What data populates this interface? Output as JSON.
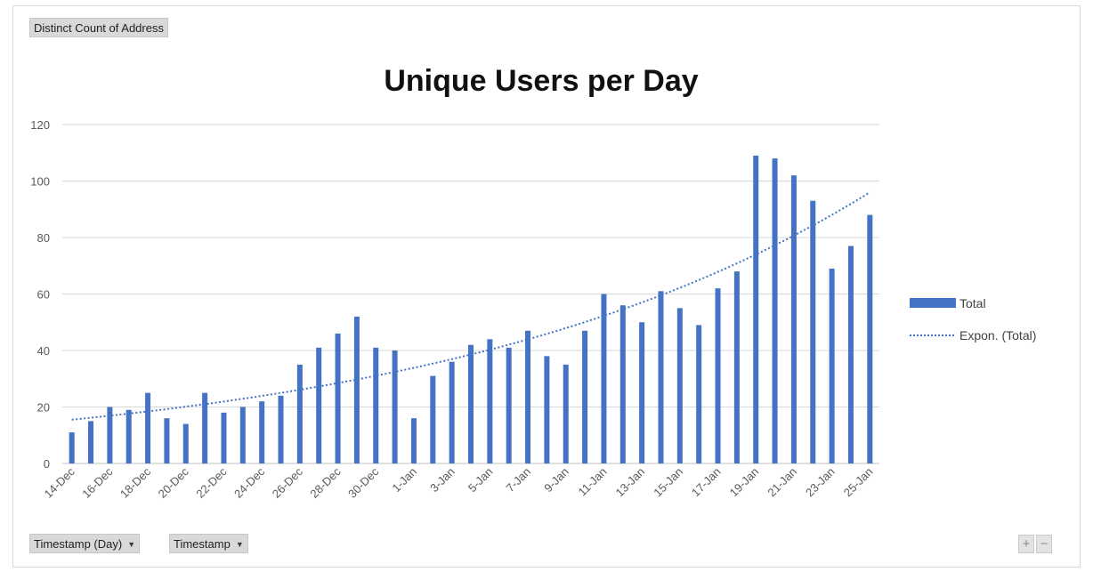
{
  "value_field": {
    "label": "Distinct Count of Address"
  },
  "axis_fields": [
    {
      "label": "Timestamp (Day)",
      "icon": "dropdown-caret-icon"
    },
    {
      "label": "Timestamp",
      "icon": "dropdown-caret-icon"
    }
  ],
  "zoom_controls": {
    "plus": "+",
    "minus": "−"
  },
  "chart_data": {
    "type": "bar",
    "title": "Unique Users per Day",
    "xlabel": "",
    "ylabel": "",
    "ylim": [
      0,
      120
    ],
    "yticks": [
      0,
      20,
      40,
      60,
      80,
      100,
      120
    ],
    "grid": true,
    "legend_position": "right",
    "categories": [
      "14-Dec",
      "15-Dec",
      "16-Dec",
      "17-Dec",
      "18-Dec",
      "19-Dec",
      "20-Dec",
      "21-Dec",
      "22-Dec",
      "23-Dec",
      "24-Dec",
      "25-Dec",
      "26-Dec",
      "27-Dec",
      "28-Dec",
      "29-Dec",
      "30-Dec",
      "31-Dec",
      "1-Jan",
      "2-Jan",
      "3-Jan",
      "4-Jan",
      "5-Jan",
      "6-Jan",
      "7-Jan",
      "8-Jan",
      "9-Jan",
      "10-Jan",
      "11-Jan",
      "12-Jan",
      "13-Jan",
      "14-Jan",
      "15-Jan",
      "16-Jan",
      "17-Jan",
      "18-Jan",
      "19-Jan",
      "20-Jan",
      "21-Jan",
      "22-Jan",
      "23-Jan",
      "24-Jan",
      "25-Jan"
    ],
    "tick_labels": [
      "14-Dec",
      "16-Dec",
      "18-Dec",
      "20-Dec",
      "22-Dec",
      "24-Dec",
      "26-Dec",
      "28-Dec",
      "30-Dec",
      "1-Jan",
      "3-Jan",
      "5-Jan",
      "7-Jan",
      "9-Jan",
      "11-Jan",
      "13-Jan",
      "15-Jan",
      "17-Jan",
      "19-Jan",
      "21-Jan",
      "23-Jan",
      "25-Jan"
    ],
    "series": [
      {
        "name": "Total",
        "type": "bar",
        "color": "#4472c4",
        "values": [
          11,
          15,
          20,
          19,
          25,
          16,
          14,
          25,
          18,
          20,
          22,
          24,
          35,
          41,
          46,
          52,
          41,
          40,
          16,
          31,
          36,
          42,
          44,
          41,
          47,
          38,
          35,
          47,
          60,
          56,
          50,
          61,
          55,
          49,
          62,
          68,
          109,
          108,
          102,
          93,
          69,
          77,
          88
        ]
      },
      {
        "name": "Expon. (Total)",
        "type": "trendline-exponential",
        "color": "#4472c4",
        "start_value": 15.5,
        "end_value": 96
      }
    ]
  }
}
